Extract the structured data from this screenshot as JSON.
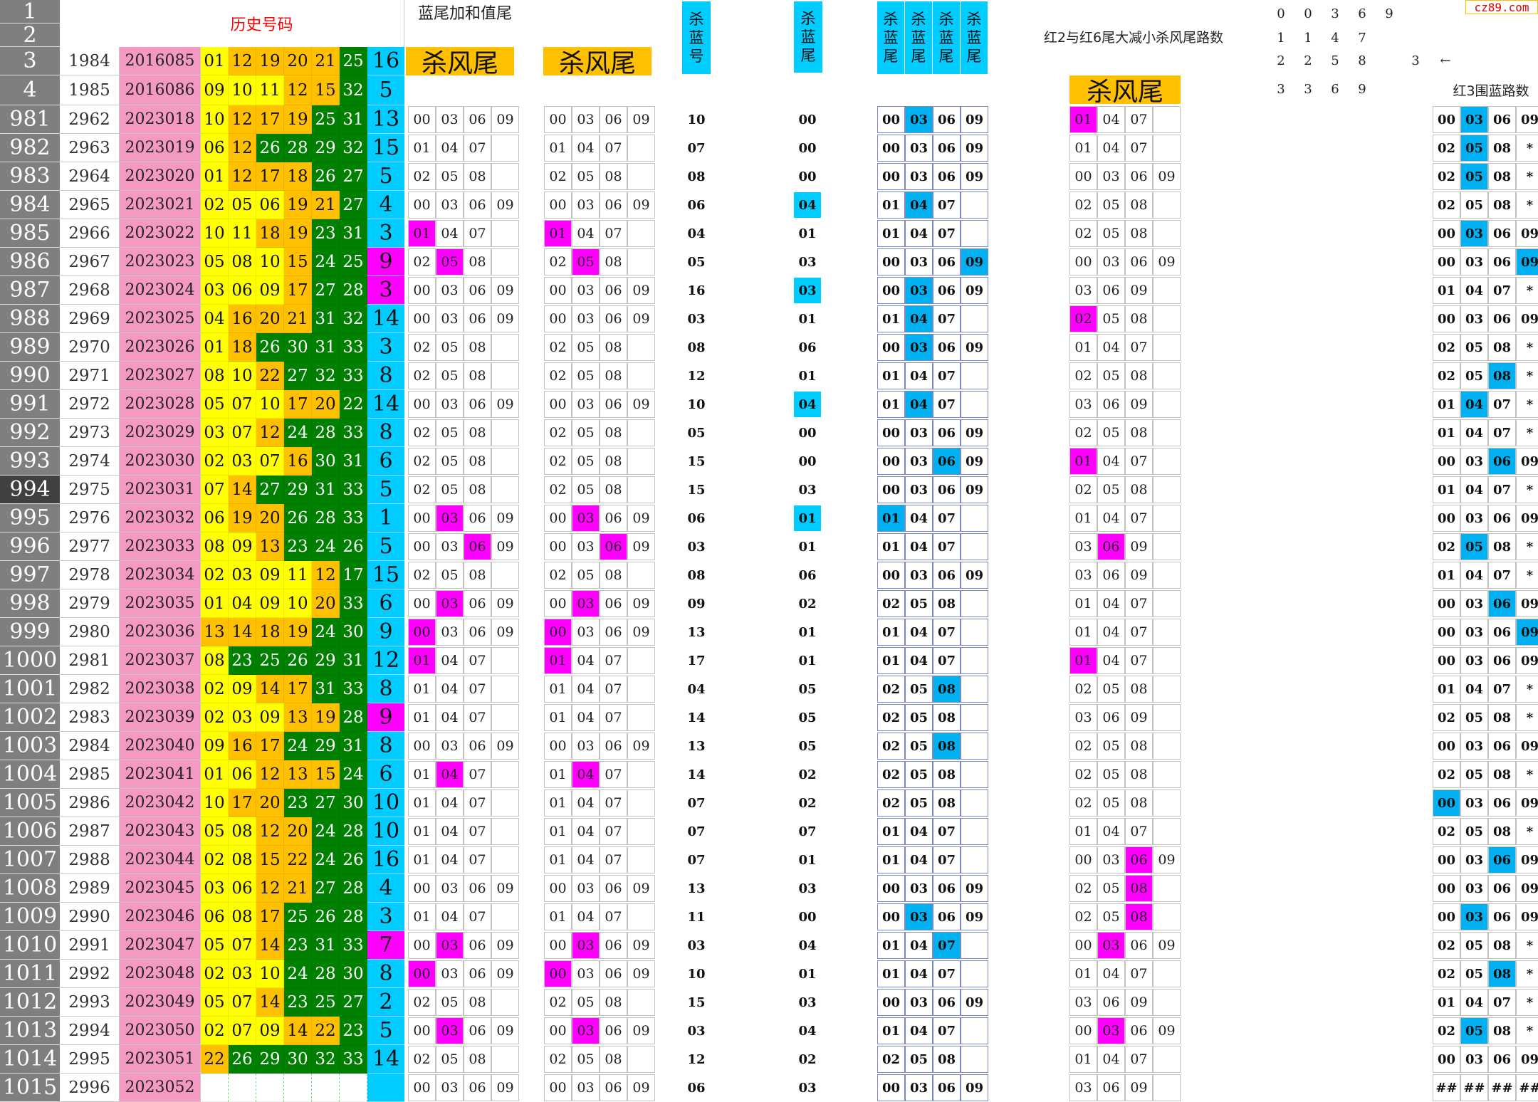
{
  "header_rows": [
    "1",
    "2",
    "3",
    "4"
  ],
  "history_title": "历史号码",
  "header_data": [
    {
      "seq": "1984",
      "issue": "2016085",
      "balls": [
        "01",
        "12",
        "19",
        "20",
        "21",
        "25"
      ],
      "blue": "16"
    },
    {
      "seq": "1985",
      "issue": "2016086",
      "balls": [
        "09",
        "10",
        "11",
        "12",
        "15",
        "32"
      ],
      "blue": "5"
    }
  ],
  "labels": {
    "lanwei": "蓝尾加和值尾",
    "shafengwei": "杀风尾",
    "sha_lan_hao": "杀蓝号",
    "sha_lan_wei": "杀蓝尾",
    "sha_lan_wei_multi": "杀蓝尾",
    "red2red6": "红2与红6尾大减小杀风尾路数",
    "red3": "红3围蓝路数",
    "arrow": "←",
    "watermark": "cz89.com"
  },
  "road_table": [
    [
      "0",
      "0",
      "3",
      "6",
      "9"
    ],
    [
      "1",
      "1",
      "4",
      "7"
    ],
    [
      "2",
      "2",
      "5",
      "8"
    ],
    [
      "3",
      "3",
      "6",
      "9"
    ]
  ],
  "road_extra": "3",
  "rows": [
    {
      "rn": "981",
      "seq": "2962",
      "issue": "2023018",
      "balls": [
        "10",
        "12",
        "17",
        "19",
        "25",
        "31"
      ],
      "blue": "13",
      "a": "0",
      "ahl": -1,
      "b": "0",
      "bhl": -1,
      "k1": "10",
      "k2": "00",
      "k2c": 0,
      "e": "0",
      "ehl": 1,
      "f": "1",
      "fhl": 0,
      "g": "0",
      "ghl": 1
    },
    {
      "rn": "982",
      "seq": "2963",
      "issue": "2023019",
      "balls": [
        "06",
        "12",
        "26",
        "28",
        "29",
        "32"
      ],
      "blue": "15",
      "a": "1",
      "ahl": -1,
      "b": "1",
      "bhl": -1,
      "k1": "07",
      "k2": "00",
      "k2c": 0,
      "e": "0",
      "ehl": -1,
      "f": "1",
      "fhl": -1,
      "g": "2",
      "ghl": 1
    },
    {
      "rn": "983",
      "seq": "2964",
      "issue": "2023020",
      "balls": [
        "01",
        "12",
        "17",
        "18",
        "26",
        "27"
      ],
      "blue": "5",
      "a": "2",
      "ahl": -1,
      "b": "2",
      "bhl": -1,
      "k1": "08",
      "k2": "00",
      "k2c": 0,
      "e": "0",
      "ehl": -1,
      "f": "0",
      "fhl": -1,
      "g": "2",
      "ghl": 1
    },
    {
      "rn": "984",
      "seq": "2965",
      "issue": "2023021",
      "balls": [
        "02",
        "05",
        "06",
        "19",
        "21",
        "27"
      ],
      "blue": "4",
      "a": "0",
      "ahl": -1,
      "b": "0",
      "bhl": -1,
      "k1": "06",
      "k2": "04",
      "k2c": 1,
      "e": "1",
      "ehl": 1,
      "f": "2",
      "fhl": -1,
      "g": "2",
      "ghl": -1
    },
    {
      "rn": "985",
      "seq": "2966",
      "issue": "2023022",
      "balls": [
        "10",
        "11",
        "18",
        "19",
        "23",
        "31"
      ],
      "blue": "3",
      "a": "1",
      "ahl": 0,
      "b": "1",
      "bhl": 0,
      "k1": "04",
      "k2": "01",
      "k2c": 0,
      "e": "1",
      "ehl": -1,
      "f": "2",
      "fhl": -1,
      "g": "0",
      "ghl": 1
    },
    {
      "rn": "986",
      "seq": "2967",
      "issue": "2023023",
      "balls": [
        "05",
        "08",
        "10",
        "15",
        "24",
        "25"
      ],
      "blue": "9",
      "a": "2",
      "ahl": 1,
      "b": "2",
      "bhl": 1,
      "k1": "05",
      "k2": "03",
      "k2c": 0,
      "e": "0",
      "ehl": 3,
      "f": "0",
      "fhl": -1,
      "g": "0",
      "ghl": 3
    },
    {
      "rn": "987",
      "seq": "2968",
      "issue": "2023024",
      "balls": [
        "03",
        "06",
        "09",
        "17",
        "27",
        "28"
      ],
      "blue": "3",
      "a": "0",
      "ahl": -1,
      "b": "0",
      "bhl": -1,
      "k1": "16",
      "k2": "03",
      "k2c": 1,
      "e": "0",
      "ehl": 1,
      "f": "3",
      "fhl": -1,
      "g": "1",
      "ghl": -1
    },
    {
      "rn": "988",
      "seq": "2969",
      "issue": "2023025",
      "balls": [
        "04",
        "16",
        "20",
        "21",
        "31",
        "32"
      ],
      "blue": "14",
      "a": "0",
      "ahl": -1,
      "b": "0",
      "bhl": -1,
      "k1": "03",
      "k2": "01",
      "k2c": 0,
      "e": "1",
      "ehl": 1,
      "f": "2",
      "fhl": 0,
      "g": "0",
      "ghl": -1
    },
    {
      "rn": "989",
      "seq": "2970",
      "issue": "2023026",
      "balls": [
        "01",
        "18",
        "26",
        "30",
        "31",
        "33"
      ],
      "blue": "3",
      "a": "2",
      "ahl": -1,
      "b": "2",
      "bhl": -1,
      "k1": "08",
      "k2": "06",
      "k2c": 0,
      "e": "0",
      "ehl": 1,
      "f": "1",
      "fhl": -1,
      "g": "2",
      "ghl": -1
    },
    {
      "rn": "990",
      "seq": "2971",
      "issue": "2023027",
      "balls": [
        "08",
        "10",
        "22",
        "27",
        "32",
        "33"
      ],
      "blue": "8",
      "a": "2",
      "ahl": -1,
      "b": "2",
      "bhl": -1,
      "k1": "12",
      "k2": "01",
      "k2c": 0,
      "e": "1",
      "ehl": -1,
      "f": "2",
      "fhl": -1,
      "g": "2",
      "ghl": 2
    },
    {
      "rn": "991",
      "seq": "2972",
      "issue": "2023028",
      "balls": [
        "05",
        "07",
        "10",
        "17",
        "20",
        "22"
      ],
      "blue": "14",
      "a": "0",
      "ahl": -1,
      "b": "0",
      "bhl": -1,
      "k1": "10",
      "k2": "04",
      "k2c": 1,
      "e": "1",
      "ehl": 1,
      "f": "3",
      "fhl": -1,
      "g": "1",
      "ghl": 1
    },
    {
      "rn": "992",
      "seq": "2973",
      "issue": "2023029",
      "balls": [
        "03",
        "07",
        "12",
        "24",
        "28",
        "33"
      ],
      "blue": "8",
      "a": "2",
      "ahl": -1,
      "b": "2",
      "bhl": -1,
      "k1": "05",
      "k2": "00",
      "k2c": 0,
      "e": "0",
      "ehl": -1,
      "f": "2",
      "fhl": -1,
      "g": "1",
      "ghl": -1
    },
    {
      "rn": "993",
      "seq": "2974",
      "issue": "2023030",
      "balls": [
        "02",
        "03",
        "07",
        "16",
        "30",
        "31"
      ],
      "blue": "6",
      "a": "2",
      "ahl": -1,
      "b": "2",
      "bhl": -1,
      "k1": "15",
      "k2": "00",
      "k2c": 0,
      "e": "0",
      "ehl": 2,
      "f": "1",
      "fhl": 0,
      "g": "0",
      "ghl": 2
    },
    {
      "rn": "994",
      "seq": "2975",
      "issue": "2023031",
      "balls": [
        "07",
        "14",
        "27",
        "29",
        "31",
        "33"
      ],
      "blue": "5",
      "a": "2",
      "ahl": -1,
      "b": "2",
      "bhl": -1,
      "k1": "15",
      "k2": "03",
      "k2c": 0,
      "e": "0",
      "ehl": -1,
      "f": "2",
      "fhl": -1,
      "g": "1",
      "ghl": -1
    },
    {
      "rn": "995",
      "seq": "2976",
      "issue": "2023032",
      "balls": [
        "06",
        "19",
        "20",
        "26",
        "28",
        "33"
      ],
      "blue": "1",
      "a": "0",
      "ahl": 1,
      "b": "0",
      "bhl": 1,
      "k1": "06",
      "k2": "01",
      "k2c": 1,
      "e": "1",
      "ehl": 0,
      "f": "1",
      "fhl": -1,
      "g": "0",
      "ghl": -1
    },
    {
      "rn": "996",
      "seq": "2977",
      "issue": "2023033",
      "balls": [
        "08",
        "09",
        "13",
        "23",
        "24",
        "26"
      ],
      "blue": "5",
      "a": "0",
      "ahl": 2,
      "b": "0",
      "bhl": 2,
      "k1": "03",
      "k2": "01",
      "k2c": 0,
      "e": "1",
      "ehl": -1,
      "f": "3",
      "fhl": 1,
      "g": "2",
      "ghl": 1
    },
    {
      "rn": "997",
      "seq": "2978",
      "issue": "2023034",
      "balls": [
        "02",
        "03",
        "09",
        "11",
        "12",
        "17"
      ],
      "blue": "15",
      "a": "2",
      "ahl": -1,
      "b": "2",
      "bhl": -1,
      "k1": "08",
      "k2": "06",
      "k2c": 0,
      "e": "0",
      "ehl": -1,
      "f": "3",
      "fhl": -1,
      "g": "1",
      "ghl": -1
    },
    {
      "rn": "998",
      "seq": "2979",
      "issue": "2023035",
      "balls": [
        "01",
        "04",
        "09",
        "10",
        "20",
        "33"
      ],
      "blue": "6",
      "a": "0",
      "ahl": 1,
      "b": "0",
      "bhl": 1,
      "k1": "09",
      "k2": "02",
      "k2c": 0,
      "e": "2",
      "ehl": -1,
      "f": "1",
      "fhl": -1,
      "g": "0",
      "ghl": 2
    },
    {
      "rn": "999",
      "seq": "2980",
      "issue": "2023036",
      "balls": [
        "13",
        "14",
        "18",
        "19",
        "24",
        "30"
      ],
      "blue": "9",
      "a": "0",
      "ahl": 0,
      "b": "0",
      "bhl": 0,
      "k1": "13",
      "k2": "01",
      "k2c": 0,
      "e": "1",
      "ehl": -1,
      "f": "1",
      "fhl": -1,
      "g": "0",
      "ghl": 3
    },
    {
      "rn": "1000",
      "seq": "2981",
      "issue": "2023037",
      "balls": [
        "08",
        "23",
        "25",
        "26",
        "29",
        "31"
      ],
      "blue": "12",
      "a": "1",
      "ahl": 0,
      "b": "1",
      "bhl": 0,
      "k1": "17",
      "k2": "01",
      "k2c": 0,
      "e": "1",
      "ehl": -1,
      "f": "1",
      "fhl": 0,
      "g": "0",
      "ghl": -1
    },
    {
      "rn": "1001",
      "seq": "2982",
      "issue": "2023038",
      "balls": [
        "02",
        "09",
        "14",
        "17",
        "31",
        "33"
      ],
      "blue": "8",
      "a": "1",
      "ahl": -1,
      "b": "1",
      "bhl": -1,
      "k1": "04",
      "k2": "05",
      "k2c": 0,
      "e": "2",
      "ehl": 2,
      "f": "2",
      "fhl": -1,
      "g": "1",
      "ghl": -1
    },
    {
      "rn": "1002",
      "seq": "2983",
      "issue": "2023039",
      "balls": [
        "02",
        "03",
        "09",
        "13",
        "19",
        "28"
      ],
      "blue": "9",
      "a": "1",
      "ahl": -1,
      "b": "1",
      "bhl": -1,
      "k1": "14",
      "k2": "05",
      "k2c": 0,
      "e": "2",
      "ehl": -1,
      "f": "3",
      "fhl": -1,
      "g": "2",
      "ghl": -1
    },
    {
      "rn": "1003",
      "seq": "2984",
      "issue": "2023040",
      "balls": [
        "09",
        "16",
        "17",
        "24",
        "29",
        "31"
      ],
      "blue": "8",
      "a": "0",
      "ahl": -1,
      "b": "0",
      "bhl": -1,
      "k1": "13",
      "k2": "05",
      "k2c": 0,
      "e": "2",
      "ehl": 2,
      "f": "2",
      "fhl": -1,
      "g": "0",
      "ghl": -1
    },
    {
      "rn": "1004",
      "seq": "2985",
      "issue": "2023041",
      "balls": [
        "01",
        "06",
        "12",
        "13",
        "15",
        "24"
      ],
      "blue": "6",
      "a": "1",
      "ahl": 1,
      "b": "1",
      "bhl": 1,
      "k1": "14",
      "k2": "02",
      "k2c": 0,
      "e": "2",
      "ehl": -1,
      "f": "2",
      "fhl": -1,
      "g": "2",
      "ghl": -1
    },
    {
      "rn": "1005",
      "seq": "2986",
      "issue": "2023042",
      "balls": [
        "10",
        "17",
        "20",
        "23",
        "27",
        "30"
      ],
      "blue": "10",
      "a": "1",
      "ahl": -1,
      "b": "1",
      "bhl": -1,
      "k1": "07",
      "k2": "02",
      "k2c": 0,
      "e": "2",
      "ehl": -1,
      "f": "2",
      "fhl": -1,
      "g": "0",
      "ghl": 0
    },
    {
      "rn": "1006",
      "seq": "2987",
      "issue": "2023043",
      "balls": [
        "05",
        "08",
        "12",
        "20",
        "24",
        "28"
      ],
      "blue": "10",
      "a": "1",
      "ahl": -1,
      "b": "1",
      "bhl": -1,
      "k1": "07",
      "k2": "07",
      "k2c": 0,
      "e": "1",
      "ehl": -1,
      "f": "1",
      "fhl": -1,
      "g": "2",
      "ghl": -1
    },
    {
      "rn": "1007",
      "seq": "2988",
      "issue": "2023044",
      "balls": [
        "02",
        "08",
        "15",
        "22",
        "24",
        "26"
      ],
      "blue": "16",
      "a": "1",
      "ahl": -1,
      "b": "1",
      "bhl": -1,
      "k1": "07",
      "k2": "01",
      "k2c": 0,
      "e": "1",
      "ehl": -1,
      "f": "0",
      "fhl": 2,
      "g": "0",
      "ghl": 2
    },
    {
      "rn": "1008",
      "seq": "2989",
      "issue": "2023045",
      "balls": [
        "03",
        "06",
        "12",
        "21",
        "27",
        "28"
      ],
      "blue": "4",
      "a": "0",
      "ahl": -1,
      "b": "0",
      "bhl": -1,
      "k1": "13",
      "k2": "03",
      "k2c": 0,
      "e": "0",
      "ehl": -1,
      "f": "2",
      "fhl": 2,
      "g": "0",
      "ghl": -1
    },
    {
      "rn": "1009",
      "seq": "2990",
      "issue": "2023046",
      "balls": [
        "06",
        "08",
        "17",
        "25",
        "26",
        "28"
      ],
      "blue": "3",
      "a": "1",
      "ahl": -1,
      "b": "1",
      "bhl": -1,
      "k1": "11",
      "k2": "00",
      "k2c": 0,
      "e": "0",
      "ehl": 1,
      "f": "2",
      "fhl": 2,
      "g": "0",
      "ghl": 1
    },
    {
      "rn": "1010",
      "seq": "2991",
      "issue": "2023047",
      "balls": [
        "05",
        "07",
        "14",
        "23",
        "31",
        "33"
      ],
      "blue": "7",
      "a": "0",
      "ahl": 1,
      "b": "0",
      "bhl": 1,
      "k1": "03",
      "k2": "04",
      "k2c": 0,
      "e": "1",
      "ehl": 2,
      "f": "0",
      "fhl": 1,
      "g": "2",
      "ghl": -1
    },
    {
      "rn": "1011",
      "seq": "2992",
      "issue": "2023048",
      "balls": [
        "02",
        "03",
        "10",
        "24",
        "28",
        "30"
      ],
      "blue": "8",
      "a": "0",
      "ahl": 0,
      "b": "0",
      "bhl": 0,
      "k1": "10",
      "k2": "01",
      "k2c": 0,
      "e": "1",
      "ehl": -1,
      "f": "1",
      "fhl": -1,
      "g": "2",
      "ghl": 2
    },
    {
      "rn": "1012",
      "seq": "2993",
      "issue": "2023049",
      "balls": [
        "05",
        "07",
        "14",
        "23",
        "25",
        "27"
      ],
      "blue": "2",
      "a": "2",
      "ahl": -1,
      "b": "2",
      "bhl": -1,
      "k1": "15",
      "k2": "03",
      "k2c": 0,
      "e": "0",
      "ehl": -1,
      "f": "3",
      "fhl": -1,
      "g": "1",
      "ghl": -1
    },
    {
      "rn": "1013",
      "seq": "2994",
      "issue": "2023050",
      "balls": [
        "02",
        "07",
        "09",
        "14",
        "22",
        "23"
      ],
      "blue": "5",
      "a": "0",
      "ahl": 1,
      "b": "0",
      "bhl": 1,
      "k1": "03",
      "k2": "04",
      "k2c": 0,
      "e": "1",
      "ehl": -1,
      "f": "0",
      "fhl": 1,
      "g": "2",
      "ghl": 1
    },
    {
      "rn": "1014",
      "seq": "2995",
      "issue": "2023051",
      "balls": [
        "22",
        "26",
        "29",
        "30",
        "32",
        "33"
      ],
      "blue": "14",
      "a": "2",
      "ahl": -1,
      "b": "2",
      "bhl": -1,
      "k1": "12",
      "k2": "02",
      "k2c": 0,
      "e": "2",
      "ehl": -1,
      "f": "1",
      "fhl": -1,
      "g": "0",
      "ghl": -1
    },
    {
      "rn": "1015",
      "seq": "2996",
      "issue": "2023052",
      "balls": [
        "",
        "",
        "",
        "",
        "",
        ""
      ],
      "blue": "",
      "a": "0",
      "ahl": -1,
      "b": "0",
      "bhl": -1,
      "k1": "06",
      "k2": "03",
      "k2c": 0,
      "e": "0",
      "ehl": -1,
      "f": "3",
      "fhl": -1,
      "g": "H",
      "ghl": -1
    }
  ],
  "colors": {
    "magenta": "#ff00ff",
    "cyan": "#00b0f0",
    "yellow": "#ffff00",
    "orange": "#ffc000",
    "green": "#00b050",
    "darkgreen": "#008000",
    "pink": "#f49ac2",
    "rowheader": "#7f7f7f"
  },
  "sets": {
    "0": [
      "00",
      "03",
      "06",
      "09"
    ],
    "1": [
      "01",
      "04",
      "07"
    ],
    "2": [
      "02",
      "05",
      "08"
    ],
    "3": [
      "03",
      "06",
      "09"
    ],
    "H": [
      "##",
      "##",
      "##",
      "##"
    ]
  }
}
